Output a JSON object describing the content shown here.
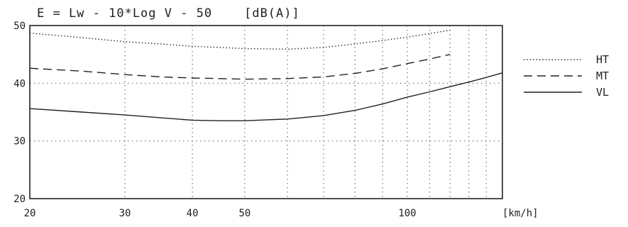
{
  "chart_data": {
    "type": "line",
    "title": "E = Lw - 10*Log V - 50    [dB(A)]",
    "xlabel": "[km/h]",
    "ylabel": "",
    "x_scale": "log",
    "xlim": [
      20,
      150
    ],
    "ylim": [
      20,
      50
    ],
    "x_ticks": [
      20,
      30,
      40,
      50,
      100
    ],
    "x_tick_labels": [
      "20",
      "30",
      "40",
      "50",
      "100"
    ],
    "x_gridlines": [
      20,
      30,
      40,
      50,
      60,
      70,
      80,
      90,
      100,
      110,
      120,
      130,
      140,
      150
    ],
    "y_ticks": [
      20,
      30,
      40,
      50
    ],
    "y_tick_labels": [
      "20",
      "30",
      "40",
      "50"
    ],
    "grid": true,
    "legend_position": "right",
    "series": [
      {
        "name": "HT",
        "line_style": "dotted",
        "x": [
          20,
          25,
          30,
          35,
          40,
          45,
          50,
          60,
          70,
          80,
          90,
          100,
          110,
          120
        ],
        "y": [
          48.7,
          47.9,
          47.2,
          46.8,
          46.4,
          46.2,
          46.0,
          45.9,
          46.2,
          46.8,
          47.4,
          48.0,
          48.6,
          49.2
        ]
      },
      {
        "name": "MT",
        "line_style": "dashed",
        "x": [
          20,
          25,
          30,
          35,
          40,
          45,
          50,
          60,
          70,
          80,
          90,
          100,
          110,
          120
        ],
        "y": [
          42.6,
          42.1,
          41.5,
          41.1,
          40.9,
          40.8,
          40.7,
          40.8,
          41.1,
          41.7,
          42.5,
          43.4,
          44.2,
          45.0
        ]
      },
      {
        "name": "VL",
        "line_style": "solid",
        "x": [
          20,
          25,
          30,
          35,
          40,
          45,
          50,
          60,
          70,
          80,
          90,
          100,
          110,
          120,
          130,
          140,
          150
        ],
        "y": [
          35.6,
          35.0,
          34.5,
          34.0,
          33.6,
          33.5,
          33.5,
          33.8,
          34.4,
          35.3,
          36.4,
          37.6,
          38.5,
          39.4,
          40.2,
          41.0,
          41.8
        ]
      }
    ]
  },
  "colors": {
    "ink": "#222222",
    "grid": "#666666",
    "background": "#ffffff"
  }
}
